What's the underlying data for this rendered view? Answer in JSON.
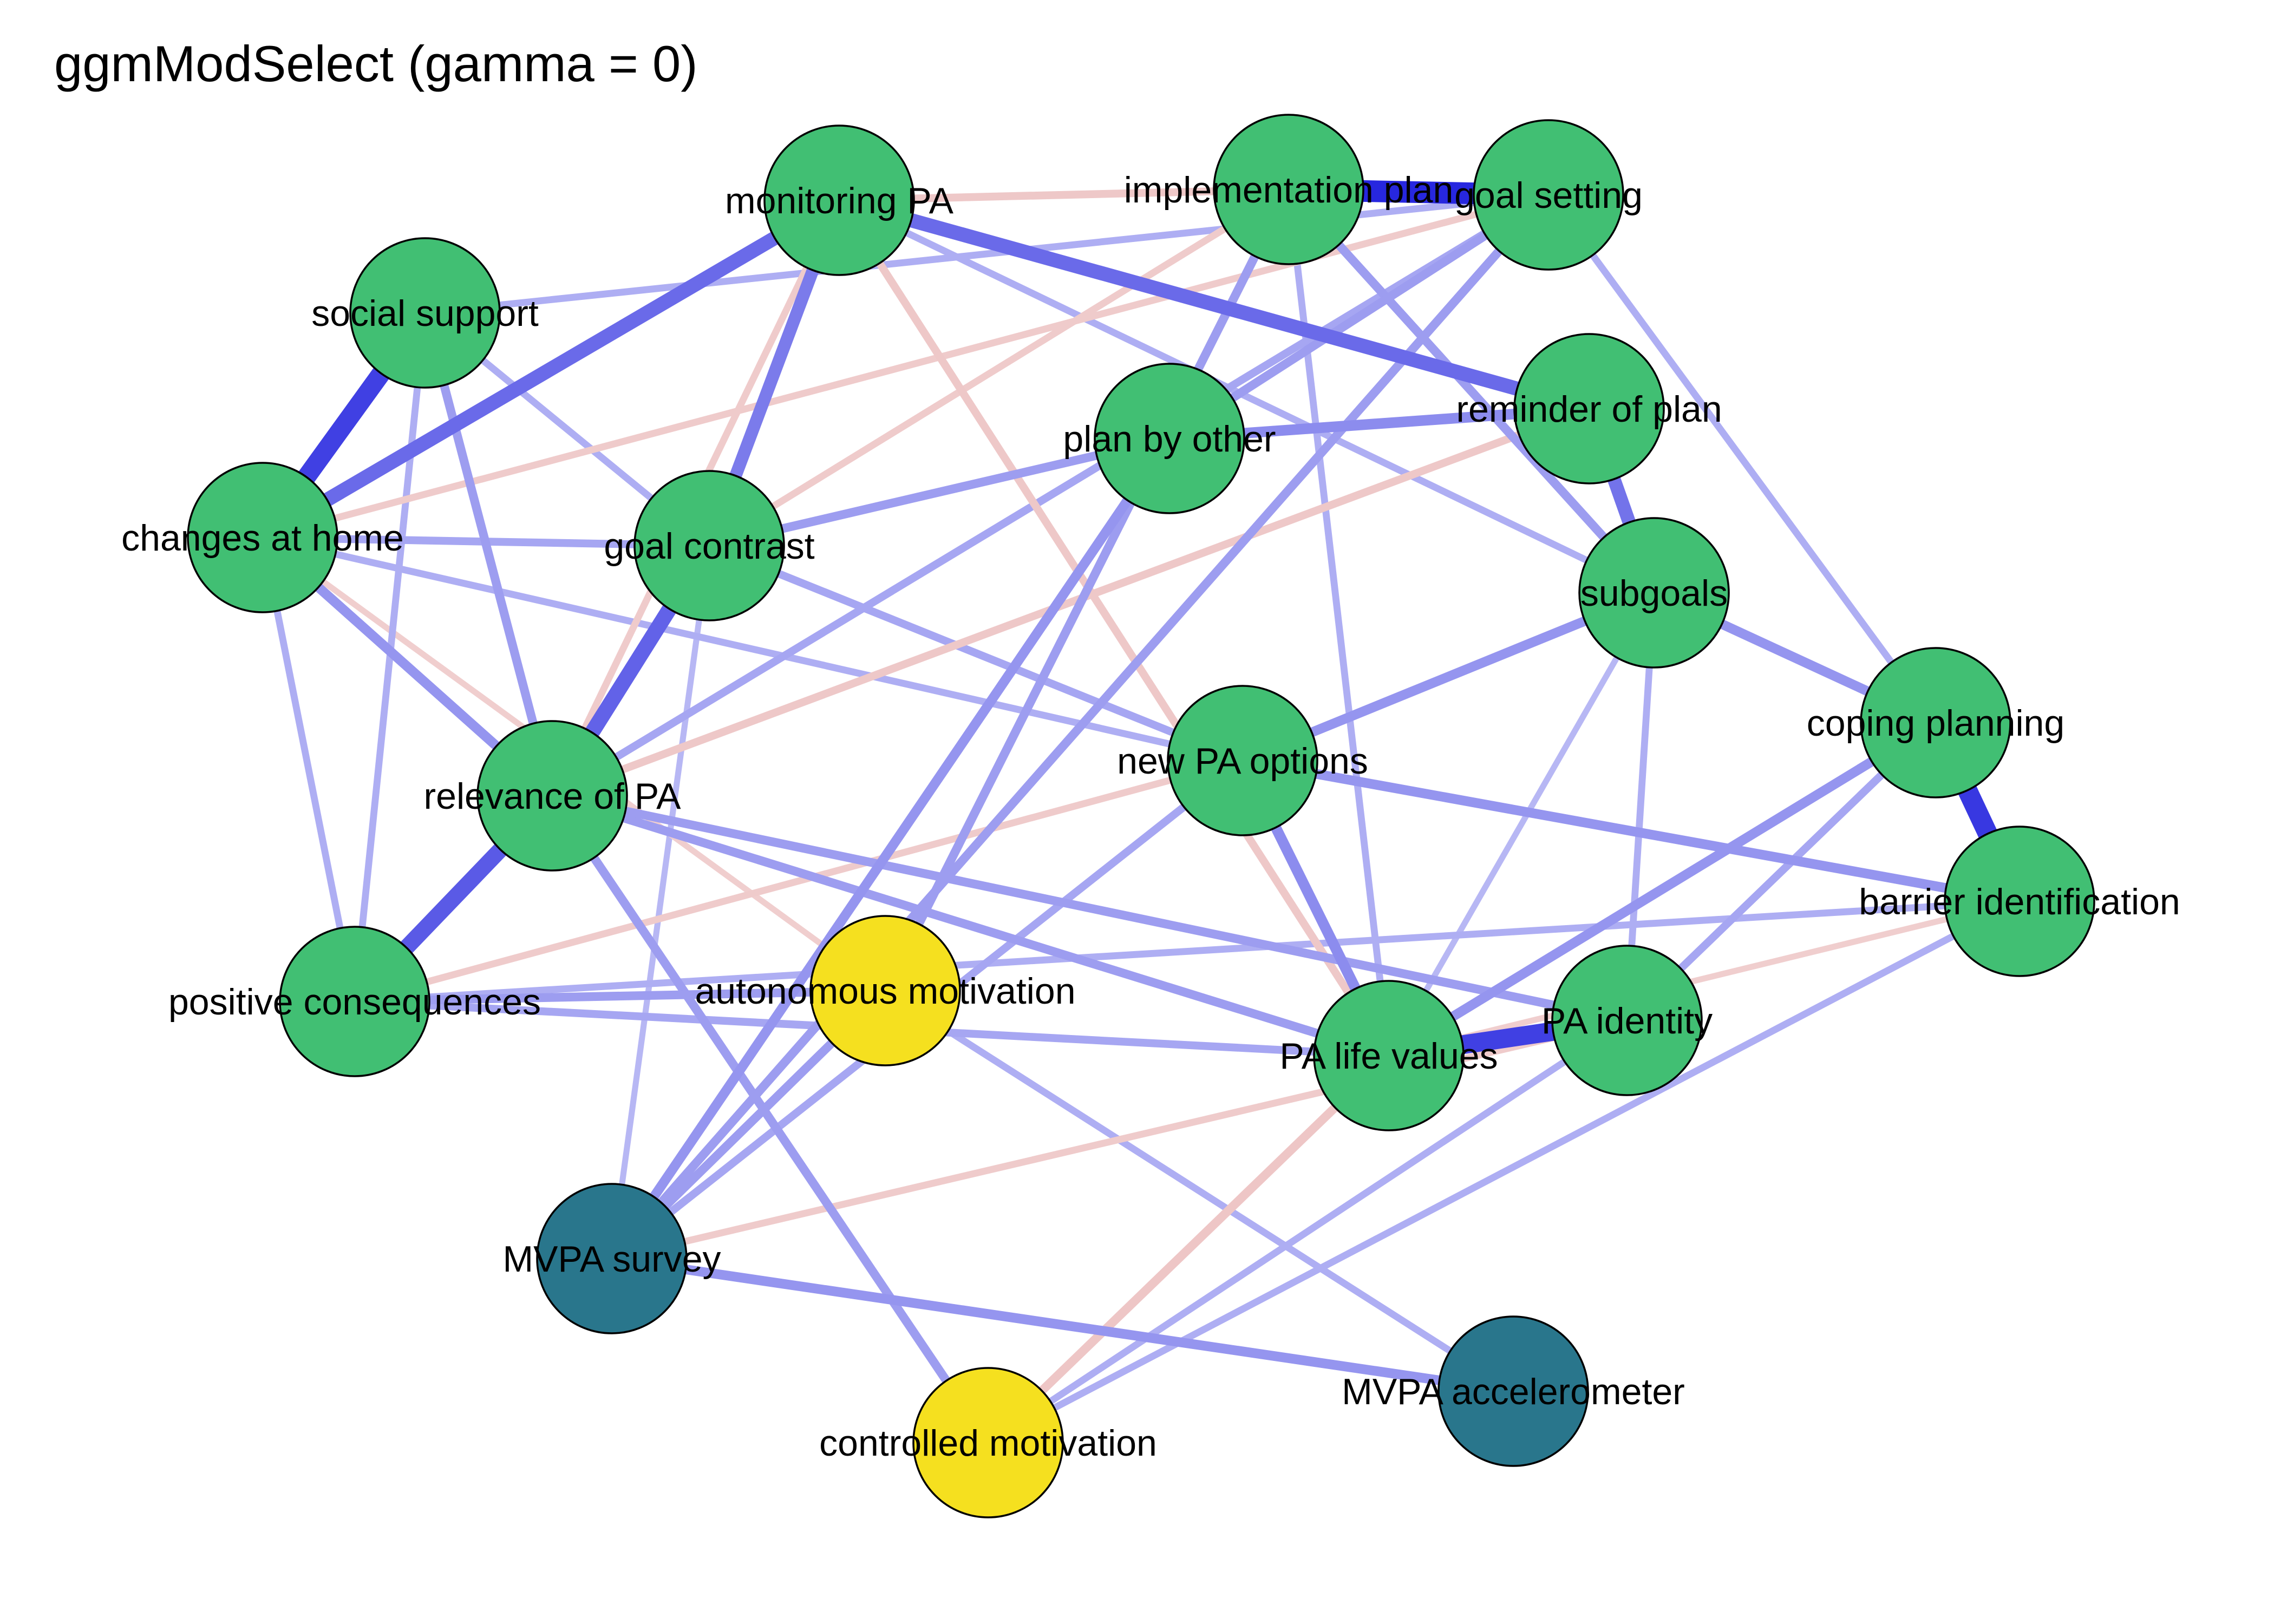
{
  "title": "ggmModSelect (gamma = 0)",
  "colors": {
    "behaviour_node": "#41BF73",
    "motivation_node": "#F5E01F",
    "outcome_node": "#29768C",
    "positive_edge": "#1414DC",
    "negative_edge": "#DC8C8C",
    "node_border": "#000000"
  },
  "nodes": [
    {
      "id": "monitoring",
      "label": "monitoring PA",
      "group": "behaviour"
    },
    {
      "id": "implementation",
      "label": "implementation plan",
      "group": "behaviour"
    },
    {
      "id": "goalsetting",
      "label": "goal setting",
      "group": "behaviour"
    },
    {
      "id": "social",
      "label": "social support",
      "group": "behaviour"
    },
    {
      "id": "reminder",
      "label": "reminder of plan",
      "group": "behaviour"
    },
    {
      "id": "planother",
      "label": "plan by other",
      "group": "behaviour"
    },
    {
      "id": "changes",
      "label": "changes at home",
      "group": "behaviour"
    },
    {
      "id": "goalcontrast",
      "label": "goal contrast",
      "group": "behaviour"
    },
    {
      "id": "subgoals",
      "label": "subgoals",
      "group": "behaviour"
    },
    {
      "id": "coping",
      "label": "coping planning",
      "group": "behaviour"
    },
    {
      "id": "newpa",
      "label": "new PA options",
      "group": "behaviour"
    },
    {
      "id": "relevance",
      "label": "relevance of PA",
      "group": "behaviour"
    },
    {
      "id": "barrier",
      "label": "barrier identification",
      "group": "behaviour"
    },
    {
      "id": "positive",
      "label": "positive consequences",
      "group": "behaviour"
    },
    {
      "id": "autonomous",
      "label": "autonomous motivation",
      "group": "motivation"
    },
    {
      "id": "identity",
      "label": "PA identity",
      "group": "behaviour"
    },
    {
      "id": "lifevalues",
      "label": "PA life values",
      "group": "behaviour"
    },
    {
      "id": "mvpasurvey",
      "label": "MVPA survey",
      "group": "outcome"
    },
    {
      "id": "mvpaacc",
      "label": "MVPA accelerometer",
      "group": "outcome"
    },
    {
      "id": "controlled",
      "label": "controlled motivation",
      "group": "motivation"
    }
  ],
  "edges": [
    {
      "from": "implementation",
      "to": "goalsetting",
      "sign": "positive",
      "strength": 1.0
    },
    {
      "from": "coping",
      "to": "barrier",
      "sign": "positive",
      "strength": 0.9
    },
    {
      "from": "social",
      "to": "changes",
      "sign": "positive",
      "strength": 0.85
    },
    {
      "from": "lifevalues",
      "to": "identity",
      "sign": "positive",
      "strength": 0.85
    },
    {
      "from": "relevance",
      "to": "positive",
      "sign": "positive",
      "strength": 0.7
    },
    {
      "from": "monitoring",
      "to": "reminder",
      "sign": "positive",
      "strength": 0.6
    },
    {
      "from": "monitoring",
      "to": "changes",
      "sign": "positive",
      "strength": 0.6
    },
    {
      "from": "goalcontrast",
      "to": "relevance",
      "sign": "positive",
      "strength": 0.65
    },
    {
      "from": "monitoring",
      "to": "goalcontrast",
      "sign": "positive",
      "strength": 0.5
    },
    {
      "from": "reminder",
      "to": "subgoals",
      "sign": "positive",
      "strength": 0.55
    },
    {
      "from": "planother",
      "to": "reminder",
      "sign": "positive",
      "strength": 0.4
    },
    {
      "from": "mvpasurvey",
      "to": "mvpaacc",
      "sign": "positive",
      "strength": 0.35
    },
    {
      "from": "subgoals",
      "to": "newpa",
      "sign": "positive",
      "strength": 0.35
    },
    {
      "from": "subgoals",
      "to": "coping",
      "sign": "positive",
      "strength": 0.35
    },
    {
      "from": "newpa",
      "to": "barrier",
      "sign": "positive",
      "strength": 0.35
    },
    {
      "from": "newpa",
      "to": "lifevalues",
      "sign": "positive",
      "strength": 0.4
    },
    {
      "from": "coping",
      "to": "lifevalues",
      "sign": "positive",
      "strength": 0.35
    },
    {
      "from": "goalsetting",
      "to": "mvpasurvey",
      "sign": "positive",
      "strength": 0.3
    },
    {
      "from": "implementation",
      "to": "autonomous",
      "sign": "positive",
      "strength": 0.3
    },
    {
      "from": "planother",
      "to": "mvpasurvey",
      "sign": "positive",
      "strength": 0.35
    },
    {
      "from": "goalcontrast",
      "to": "planother",
      "sign": "positive",
      "strength": 0.3
    },
    {
      "from": "relevance",
      "to": "lifevalues",
      "sign": "positive",
      "strength": 0.3
    },
    {
      "from": "relevance",
      "to": "identity",
      "sign": "positive",
      "strength": 0.3
    },
    {
      "from": "relevance",
      "to": "controlled",
      "sign": "positive",
      "strength": 0.3
    },
    {
      "from": "social",
      "to": "relevance",
      "sign": "positive",
      "strength": 0.3
    },
    {
      "from": "changes",
      "to": "relevance",
      "sign": "positive",
      "strength": 0.35
    },
    {
      "from": "positive",
      "to": "autonomous",
      "sign": "positive",
      "strength": 0.3
    },
    {
      "from": "positive",
      "to": "lifevalues",
      "sign": "positive",
      "strength": 0.25
    },
    {
      "from": "implementation",
      "to": "subgoals",
      "sign": "positive",
      "strength": 0.3
    },
    {
      "from": "goalsetting",
      "to": "planother",
      "sign": "positive",
      "strength": 0.3
    },
    {
      "from": "goalsetting",
      "to": "relevance",
      "sign": "positive",
      "strength": 0.25
    },
    {
      "from": "autonomous",
      "to": "mvpasurvey",
      "sign": "positive",
      "strength": 0.3
    },
    {
      "from": "newpa",
      "to": "mvpasurvey",
      "sign": "positive",
      "strength": 0.25
    },
    {
      "from": "coping",
      "to": "identity",
      "sign": "positive",
      "strength": 0.25
    },
    {
      "from": "social",
      "to": "goalsetting",
      "sign": "positive",
      "strength": 0.2
    },
    {
      "from": "social",
      "to": "goalcontrast",
      "sign": "positive",
      "strength": 0.2
    },
    {
      "from": "changes",
      "to": "goalcontrast",
      "sign": "positive",
      "strength": 0.25
    },
    {
      "from": "changes",
      "to": "newpa",
      "sign": "positive",
      "strength": 0.2
    },
    {
      "from": "monitoring",
      "to": "subgoals",
      "sign": "positive",
      "strength": 0.2
    },
    {
      "from": "implementation",
      "to": "lifevalues",
      "sign": "positive",
      "strength": 0.2
    },
    {
      "from": "goalsetting",
      "to": "coping",
      "sign": "positive",
      "strength": 0.2
    },
    {
      "from": "subgoals",
      "to": "identity",
      "sign": "positive",
      "strength": 0.2
    },
    {
      "from": "subgoals",
      "to": "lifevalues",
      "sign": "positive",
      "strength": 0.15
    },
    {
      "from": "barrier",
      "to": "positive",
      "sign": "positive",
      "strength": 0.2
    },
    {
      "from": "barrier",
      "to": "controlled",
      "sign": "positive",
      "strength": 0.2
    },
    {
      "from": "identity",
      "to": "controlled",
      "sign": "positive",
      "strength": 0.2
    },
    {
      "from": "autonomous",
      "to": "mvpaacc",
      "sign": "positive",
      "strength": 0.2
    },
    {
      "from": "goalcontrast",
      "to": "mvpasurvey",
      "sign": "positive",
      "strength": 0.15
    },
    {
      "from": "changes",
      "to": "positive",
      "sign": "positive",
      "strength": 0.2
    },
    {
      "from": "social",
      "to": "positive",
      "sign": "positive",
      "strength": 0.2
    },
    {
      "from": "goalcontrast",
      "to": "newpa",
      "sign": "positive",
      "strength": 0.25
    },
    {
      "from": "monitoring",
      "to": "implementation",
      "sign": "negative",
      "strength": 0.25
    },
    {
      "from": "monitoring",
      "to": "lifevalues",
      "sign": "negative",
      "strength": 0.25
    },
    {
      "from": "monitoring",
      "to": "relevance",
      "sign": "negative",
      "strength": 0.2
    },
    {
      "from": "reminder",
      "to": "relevance",
      "sign": "negative",
      "strength": 0.25
    },
    {
      "from": "goalsetting",
      "to": "changes",
      "sign": "negative",
      "strength": 0.2
    },
    {
      "from": "implementation",
      "to": "goalcontrast",
      "sign": "negative",
      "strength": 0.2
    },
    {
      "from": "lifevalues",
      "to": "controlled",
      "sign": "negative",
      "strength": 0.3
    },
    {
      "from": "newpa",
      "to": "positive",
      "sign": "negative",
      "strength": 0.2
    },
    {
      "from": "mvpasurvey",
      "to": "identity",
      "sign": "negative",
      "strength": 0.2
    },
    {
      "from": "changes",
      "to": "autonomous",
      "sign": "negative",
      "strength": 0.15
    },
    {
      "from": "barrier",
      "to": "lifevalues",
      "sign": "negative",
      "strength": 0.15
    }
  ]
}
